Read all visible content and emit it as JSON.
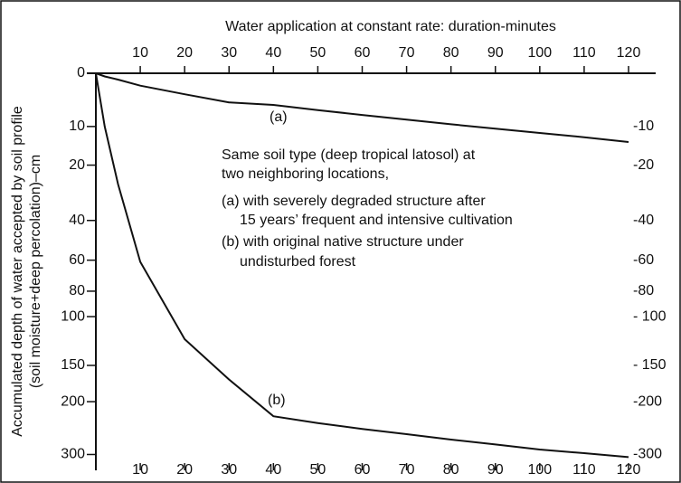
{
  "chart_data": {
    "type": "line",
    "x_axis_label": "Water application at constant rate: duration-minutes",
    "y_axis_label": [
      "Accumulated depth of water accepted by soil profile",
      "(soil moisture+deep percolation)–cm"
    ],
    "x": [
      0,
      2,
      5,
      10,
      20,
      30,
      40,
      50,
      60,
      70,
      80,
      90,
      100,
      110,
      120
    ],
    "series": [
      {
        "name": "(a)",
        "color": "#111111",
        "values": [
          0,
          0.5,
          1,
          2,
          3.5,
          5,
          5.5,
          6.5,
          7.5,
          8.5,
          9.5,
          10.5,
          11.5,
          12.5,
          13.7
        ]
      },
      {
        "name": "(b)",
        "color": "#111111",
        "values": [
          0,
          10,
          26,
          61,
          121,
          168,
          224,
          236,
          247,
          257,
          268,
          278,
          289,
          297,
          306
        ]
      }
    ],
    "annotation": [
      "Same soil type (deep tropical latosol) at",
      "two neighboring locations,",
      "(a) with severely degraded structure after",
      "15 years’ frequent and intensive cultivation",
      "(b) with original native structure under",
      "undisturbed forest"
    ],
    "xlim": [
      0,
      120
    ],
    "xticks": [
      10,
      20,
      30,
      40,
      50,
      60,
      70,
      80,
      90,
      100,
      110,
      120
    ],
    "ylim": [
      0,
      338
    ],
    "yticks": [
      0,
      10,
      20,
      40,
      60,
      80,
      100,
      150,
      200,
      300
    ],
    "y2ticks": [
      {
        "value": 10,
        "label": "-10"
      },
      {
        "value": 20,
        "label": "-20"
      },
      {
        "value": 40,
        "label": "-40"
      },
      {
        "value": 60,
        "label": "-60"
      },
      {
        "value": 80,
        "label": "-80"
      },
      {
        "value": 100,
        "label": "- 100"
      },
      {
        "value": 150,
        "label": "- 150"
      },
      {
        "value": 200,
        "label": "-200"
      },
      {
        "value": 300,
        "label": "-300"
      }
    ],
    "inverted_y": true
  }
}
